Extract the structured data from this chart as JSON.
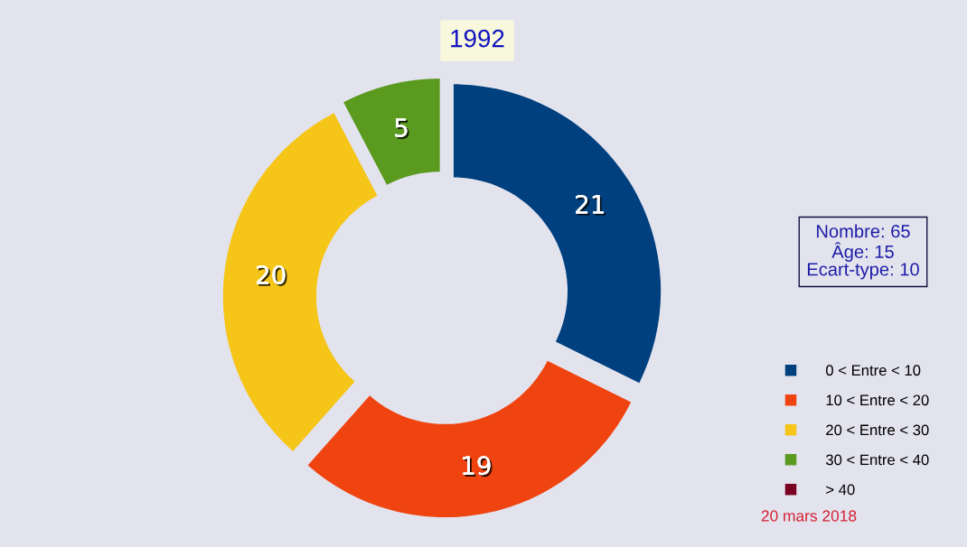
{
  "chart_data": {
    "type": "donut",
    "title": "1992",
    "categories": [
      "0 < Entre < 10",
      "10 < Entre < 20",
      "20 < Entre < 30",
      "30 < Entre < 40",
      "> 40"
    ],
    "values": [
      21,
      19,
      20,
      5,
      0
    ],
    "colors": [
      "#00407f",
      "#f04410",
      "#f5c518",
      "#5a9a1e",
      "#7a0022"
    ],
    "data_labels": true,
    "legend": "bottom right",
    "annotations": [
      "Nombre: 65\nÂge: 15\nEcart-type: 10",
      "20 mars 2018"
    ]
  }
}
